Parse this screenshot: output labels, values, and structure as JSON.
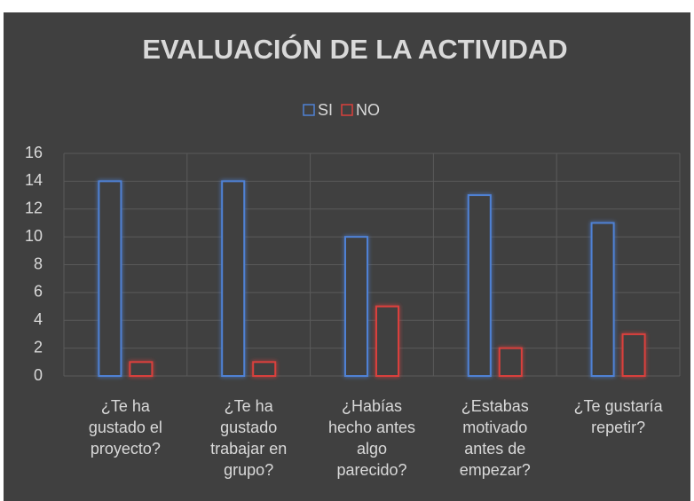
{
  "chart_data": {
    "type": "bar",
    "title": "EVALUACIÓN DE LA ACTIVIDAD",
    "categories": [
      "¿Te ha gustado el proyecto?",
      "¿Te ha gustado trabajar en grupo?",
      "¿Habías hecho antes algo parecido?",
      "¿Estabas motivado antes de empezar?",
      "¿Te gustaría repetir?"
    ],
    "series": [
      {
        "name": "SI",
        "color": "#4f81d4",
        "values": [
          14,
          14,
          10,
          13,
          11
        ]
      },
      {
        "name": "NO",
        "color": "#d9403c",
        "values": [
          1,
          1,
          5,
          2,
          3
        ]
      }
    ],
    "ylim": [
      0,
      16
    ],
    "yticks": [
      0,
      2,
      4,
      6,
      8,
      10,
      12,
      14,
      16
    ],
    "grid": true,
    "legend": "top"
  }
}
